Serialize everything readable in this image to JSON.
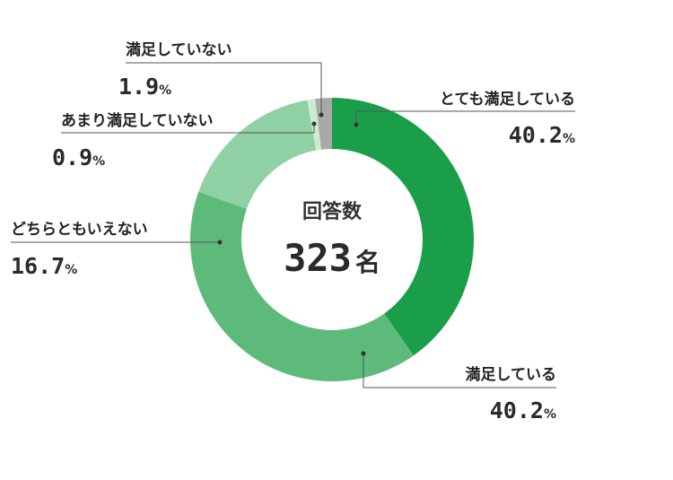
{
  "chart_data": {
    "type": "pie",
    "donut": true,
    "center": {
      "label": "回答数",
      "value": "323",
      "unit": "名"
    },
    "percent_suffix": "%",
    "slices": [
      {
        "key": "very-satisfied",
        "label": "とても満足している",
        "value": 40.2,
        "value_text": "40.2",
        "color": "#1a9e4a"
      },
      {
        "key": "satisfied",
        "label": "満足している",
        "value": 40.2,
        "value_text": "40.2",
        "color": "#5dba7b"
      },
      {
        "key": "neutral",
        "label": "どちらともいえない",
        "value": 16.7,
        "value_text": "16.7",
        "color": "#8fd0a4"
      },
      {
        "key": "somewhat-dissatisfied",
        "label": "あまり満足していない",
        "value": 0.9,
        "value_text": "0.9",
        "color": "#cdeccf"
      },
      {
        "key": "dissatisfied",
        "label": "満足していない",
        "value": 1.9,
        "value_text": "1.9",
        "color": "#a9a9a9"
      }
    ]
  }
}
